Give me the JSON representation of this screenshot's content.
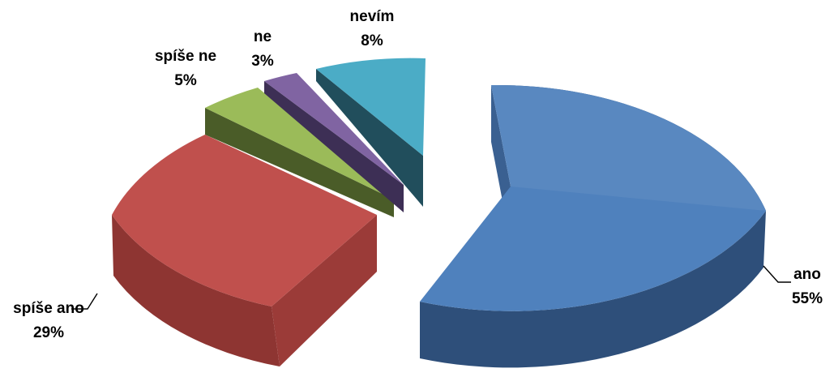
{
  "chart_data": {
    "type": "pie",
    "style": "3d-exploded",
    "slices": [
      {
        "label": "ano",
        "value": 55,
        "value_label": "55%",
        "color": "#4F81BD"
      },
      {
        "label": "nevím",
        "value": 8,
        "value_label": "8%",
        "color": "#4BACC6"
      },
      {
        "label": "ne",
        "value": 3,
        "value_label": "3%",
        "color": "#8064A2"
      },
      {
        "label": "spíše ne",
        "value": 5,
        "value_label": "5%",
        "color": "#9BBB59"
      },
      {
        "label": "spíše ano",
        "value": 29,
        "value_label": "29%",
        "color": "#C0504D"
      }
    ],
    "legend": "none"
  }
}
